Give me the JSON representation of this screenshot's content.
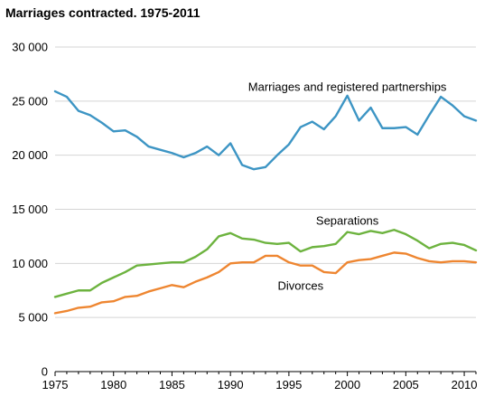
{
  "chart_data": {
    "type": "line",
    "title": "Marriages contracted. 1975-2011",
    "xlabel": "",
    "ylabel": "",
    "x": [
      1975,
      1976,
      1977,
      1978,
      1979,
      1980,
      1981,
      1982,
      1983,
      1984,
      1985,
      1986,
      1987,
      1988,
      1989,
      1990,
      1991,
      1992,
      1993,
      1994,
      1995,
      1996,
      1997,
      1998,
      1999,
      2000,
      2001,
      2002,
      2003,
      2004,
      2005,
      2006,
      2007,
      2008,
      2009,
      2010,
      2011
    ],
    "xlim": [
      1975,
      2011
    ],
    "ylim": [
      0,
      30000
    ],
    "x_ticks": [
      1975,
      1980,
      1985,
      1990,
      1995,
      2000,
      2005,
      2010
    ],
    "x_tick_labels": [
      "1975",
      "1980",
      "1985",
      "1990",
      "1995",
      "2000",
      "2005",
      "2010"
    ],
    "y_ticks": [
      0,
      5000,
      10000,
      15000,
      20000,
      25000,
      30000
    ],
    "y_tick_labels": [
      "0",
      "5 000",
      "10 000",
      "15 000",
      "20 000",
      "25 000",
      "30 000"
    ],
    "grid": "horizontal",
    "legend": "inline labels",
    "series": [
      {
        "name": "Marriages and registered partnerships",
        "color": "#3d95c4",
        "values": [
          25900,
          25400,
          24100,
          23700,
          23000,
          22200,
          22300,
          21700,
          20800,
          20500,
          20200,
          19800,
          20200,
          20800,
          20000,
          21100,
          19100,
          18700,
          18900,
          20000,
          21000,
          22600,
          23100,
          22400,
          23600,
          25500,
          23200,
          24400,
          22500,
          22500,
          22600,
          21900,
          23700,
          25400,
          24600,
          23600,
          23200
        ]
      },
      {
        "name": "Separations",
        "color": "#6db33f",
        "values": [
          6900,
          7200,
          7500,
          7500,
          8200,
          8700,
          9200,
          9800,
          9900,
          10000,
          10100,
          10100,
          10600,
          11300,
          12500,
          12800,
          12300,
          12200,
          11900,
          11800,
          11900,
          11100,
          11500,
          11600,
          11800,
          12900,
          12700,
          13000,
          12800,
          13100,
          12700,
          12100,
          11400,
          11800,
          11900,
          11700,
          11200
        ]
      },
      {
        "name": "Divorces",
        "color": "#ee8631",
        "values": [
          5400,
          5600,
          5900,
          6000,
          6400,
          6500,
          6900,
          7000,
          7400,
          7700,
          8000,
          7800,
          8300,
          8700,
          9200,
          10000,
          10100,
          10100,
          10700,
          10700,
          10100,
          9800,
          9800,
          9200,
          9100,
          10100,
          10300,
          10400,
          10700,
          11000,
          10900,
          10500,
          10200,
          10100,
          10200,
          10200,
          10100
        ]
      }
    ],
    "annotations": [
      {
        "text": "Marriages and registered partnerships",
        "series": 0,
        "year": 2000,
        "value": 26300
      },
      {
        "text": "Separations",
        "series": 1,
        "year": 2000,
        "value": 13900
      },
      {
        "text": "Divorces",
        "series": 2,
        "year": 1996,
        "value": 7900
      }
    ]
  }
}
